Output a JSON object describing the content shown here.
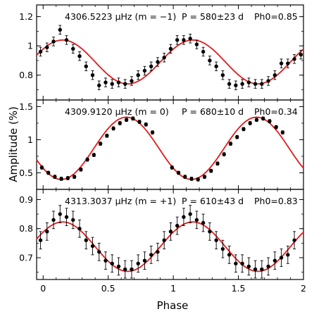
{
  "chart_data": [
    {
      "type": "scatter",
      "title": "",
      "annotation": {
        "freq": "4306.5223 μHz (m = −1)",
        "period": "P = 580±23 d",
        "phase0": "Ph0=0.85"
      },
      "xlim": [
        -0.05,
        2.0
      ],
      "ylim": [
        0.63,
        1.28
      ],
      "yticks": [
        0.8,
        1.0,
        1.2
      ],
      "ytick_labels": [
        "0.8",
        "1",
        "1.2"
      ],
      "fit": {
        "mean": 0.89,
        "amplitude": 0.15,
        "peak_phase": 0.15
      },
      "points": {
        "x": [
          -0.02,
          0.03,
          0.08,
          0.13,
          0.18,
          0.23,
          0.28,
          0.33,
          0.38,
          0.43,
          0.48,
          0.53,
          0.58,
          0.63,
          0.68,
          0.73,
          0.78,
          0.83,
          0.88,
          0.93,
          0.98,
          1.03,
          1.08,
          1.13,
          1.18,
          1.23,
          1.28,
          1.33,
          1.38,
          1.43,
          1.48,
          1.53,
          1.58,
          1.63,
          1.68,
          1.73,
          1.78,
          1.83,
          1.88,
          1.93,
          1.98
        ],
        "y": [
          0.96,
          0.99,
          1.03,
          1.11,
          1.04,
          0.98,
          0.93,
          0.86,
          0.8,
          0.73,
          0.75,
          0.74,
          0.75,
          0.74,
          0.76,
          0.8,
          0.83,
          0.86,
          0.89,
          0.92,
          0.98,
          1.04,
          1.04,
          1.05,
          1.01,
          0.96,
          0.9,
          0.86,
          0.8,
          0.74,
          0.73,
          0.74,
          0.75,
          0.74,
          0.74,
          0.76,
          0.8,
          0.88,
          0.88,
          0.91,
          0.94
        ],
        "err": 0.03
      }
    },
    {
      "type": "scatter",
      "title": "",
      "annotation": {
        "freq": "4309.9120 μHz (m = 0)",
        "period": "P = 680±10 d",
        "phase0": "Ph0=0.34"
      },
      "xlim": [
        -0.05,
        2.0
      ],
      "ylim": [
        0.25,
        1.6
      ],
      "yticks": [
        0.5,
        1.0,
        1.5
      ],
      "ytick_labels": [
        "0.5",
        "1",
        "1.5"
      ],
      "fit": {
        "mean": 0.87,
        "amplitude": 0.47,
        "peak_phase": 0.64
      },
      "points": {
        "x": [
          -0.01,
          0.04,
          0.09,
          0.14,
          0.19,
          0.24,
          0.29,
          0.34,
          0.39,
          0.44,
          0.49,
          0.54,
          0.59,
          0.64,
          0.69,
          0.74,
          0.79,
          0.84,
          0.99,
          1.04,
          1.09,
          1.14,
          1.19,
          1.24,
          1.29,
          1.34,
          1.39,
          1.44,
          1.49,
          1.54,
          1.59,
          1.64,
          1.69,
          1.74,
          1.79,
          1.84
        ],
        "y": [
          0.58,
          0.5,
          0.44,
          0.41,
          0.42,
          0.44,
          0.55,
          0.7,
          0.77,
          0.94,
          1.06,
          1.17,
          1.25,
          1.3,
          1.32,
          1.27,
          1.23,
          1.11,
          0.58,
          0.5,
          0.44,
          0.41,
          0.4,
          0.44,
          0.53,
          0.64,
          0.78,
          0.94,
          1.04,
          1.16,
          1.25,
          1.3,
          1.32,
          1.28,
          1.19,
          1.11
        ],
        "err": 0.025
      }
    },
    {
      "type": "scatter",
      "title": "",
      "annotation": {
        "freq": "4313.3037 μHz (m = +1)",
        "period": "P = 610±43 d",
        "phase0": "Ph0=0.83"
      },
      "xlim": [
        -0.05,
        2.0
      ],
      "ylim": [
        0.625,
        0.935
      ],
      "yticks": [
        0.7,
        0.8,
        0.9
      ],
      "ytick_labels": [
        "0.7",
        "0.8",
        "0.9"
      ],
      "fit": {
        "mean": 0.738,
        "amplitude": 0.085,
        "peak_phase": 0.15
      },
      "points": {
        "x": [
          -0.02,
          0.03,
          0.08,
          0.13,
          0.18,
          0.23,
          0.28,
          0.33,
          0.38,
          0.43,
          0.48,
          0.53,
          0.58,
          0.63,
          0.68,
          0.73,
          0.78,
          0.83,
          0.88,
          0.93,
          0.98,
          1.03,
          1.08,
          1.13,
          1.18,
          1.23,
          1.28,
          1.33,
          1.38,
          1.43,
          1.48,
          1.53,
          1.58,
          1.63,
          1.68,
          1.73,
          1.78,
          1.83,
          1.88,
          1.93
        ],
        "y": [
          0.76,
          0.79,
          0.83,
          0.85,
          0.84,
          0.83,
          0.8,
          0.76,
          0.74,
          0.72,
          0.69,
          0.68,
          0.67,
          0.66,
          0.66,
          0.68,
          0.69,
          0.71,
          0.72,
          0.76,
          0.79,
          0.81,
          0.84,
          0.85,
          0.83,
          0.82,
          0.79,
          0.76,
          0.73,
          0.71,
          0.68,
          0.68,
          0.67,
          0.66,
          0.66,
          0.67,
          0.69,
          0.7,
          0.71,
          0.76
        ],
        "err": 0.03
      }
    }
  ],
  "axes": {
    "xlabel": "Phase",
    "ylabel": "Amplitude (%)",
    "xticks": [
      0,
      0.5,
      1,
      1.5,
      2
    ],
    "xtick_labels": [
      "0",
      "0.5",
      "1",
      "1.5",
      "2"
    ]
  },
  "colors": {
    "fit_line": "#e31a1c",
    "points": "#000000",
    "frame": "#000000"
  }
}
